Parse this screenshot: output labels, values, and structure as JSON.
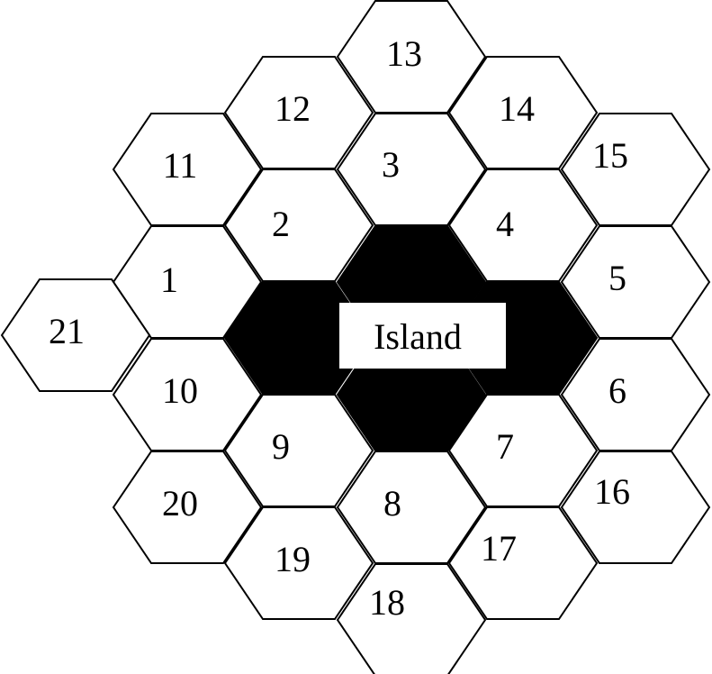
{
  "colors": {
    "line": "#000000",
    "island_fill": "#000000",
    "cell_fill": "#ffffff"
  },
  "island": {
    "label": "Island"
  },
  "cells": [
    {
      "id": "1",
      "label": "1"
    },
    {
      "id": "2",
      "label": "2"
    },
    {
      "id": "3",
      "label": "3"
    },
    {
      "id": "4",
      "label": "4"
    },
    {
      "id": "5",
      "label": "5"
    },
    {
      "id": "6",
      "label": "6"
    },
    {
      "id": "7",
      "label": "7"
    },
    {
      "id": "8",
      "label": "8"
    },
    {
      "id": "9",
      "label": "9"
    },
    {
      "id": "10",
      "label": "10"
    },
    {
      "id": "11",
      "label": "11"
    },
    {
      "id": "12",
      "label": "12"
    },
    {
      "id": "13",
      "label": "13"
    },
    {
      "id": "14",
      "label": "14"
    },
    {
      "id": "15",
      "label": "15"
    },
    {
      "id": "16",
      "label": "16"
    },
    {
      "id": "17",
      "label": "17"
    },
    {
      "id": "18",
      "label": "18"
    },
    {
      "id": "19",
      "label": "19"
    },
    {
      "id": "20",
      "label": "20"
    },
    {
      "id": "21",
      "label": "21"
    }
  ]
}
